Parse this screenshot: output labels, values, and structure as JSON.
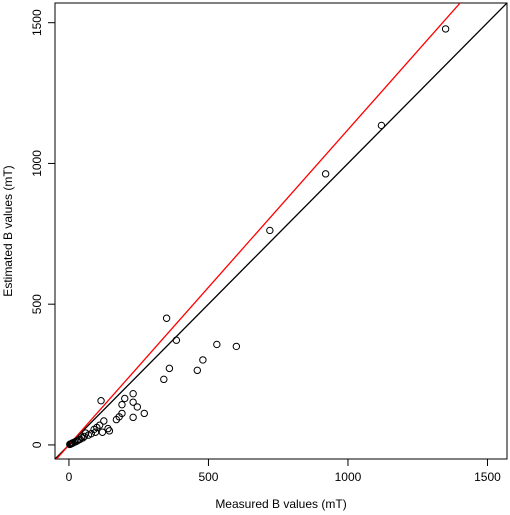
{
  "chart_data": {
    "type": "scatter",
    "title": "",
    "xlabel": "Measured B values (mT)",
    "ylabel": "Estimated B values (mT)",
    "xlim": [
      -50,
      1570
    ],
    "ylim": [
      -50,
      1570
    ],
    "xticks": [
      "0",
      "500",
      "1000",
      "1500"
    ],
    "yticks": [
      "0",
      "500",
      "1000",
      "1500"
    ],
    "grid": false,
    "legend": "none",
    "point_color": "#000000",
    "reference_lines": [
      {
        "slope": 1.0,
        "intercept": 0,
        "color": "#000000"
      },
      {
        "slope": 1.12,
        "intercept": 0,
        "color": "#ff0000"
      }
    ],
    "points": [
      [
        1350,
        1478
      ],
      [
        1120,
        1135
      ],
      [
        920,
        963
      ],
      [
        720,
        762
      ],
      [
        350,
        450
      ],
      [
        385,
        372
      ],
      [
        360,
        272
      ],
      [
        340,
        233
      ],
      [
        530,
        357
      ],
      [
        600,
        350
      ],
      [
        480,
        302
      ],
      [
        460,
        265
      ],
      [
        115,
        157
      ],
      [
        230,
        182
      ],
      [
        200,
        165
      ],
      [
        190,
        143
      ],
      [
        230,
        152
      ],
      [
        245,
        135
      ],
      [
        270,
        112
      ],
      [
        230,
        98
      ],
      [
        180,
        100
      ],
      [
        190,
        112
      ],
      [
        170,
        90
      ],
      [
        125,
        85
      ],
      [
        110,
        70
      ],
      [
        100,
        62
      ],
      [
        140,
        58
      ],
      [
        145,
        50
      ],
      [
        120,
        45
      ],
      [
        90,
        55
      ],
      [
        95,
        45
      ],
      [
        80,
        40
      ],
      [
        70,
        35
      ],
      [
        60,
        42
      ],
      [
        55,
        30
      ],
      [
        50,
        25
      ],
      [
        45,
        28
      ],
      [
        40,
        20
      ],
      [
        35,
        18
      ],
      [
        30,
        15
      ],
      [
        25,
        12
      ],
      [
        20,
        10
      ],
      [
        15,
        8
      ],
      [
        12,
        6
      ],
      [
        10,
        5
      ],
      [
        8,
        4
      ],
      [
        5,
        3
      ],
      [
        3,
        2
      ]
    ]
  }
}
